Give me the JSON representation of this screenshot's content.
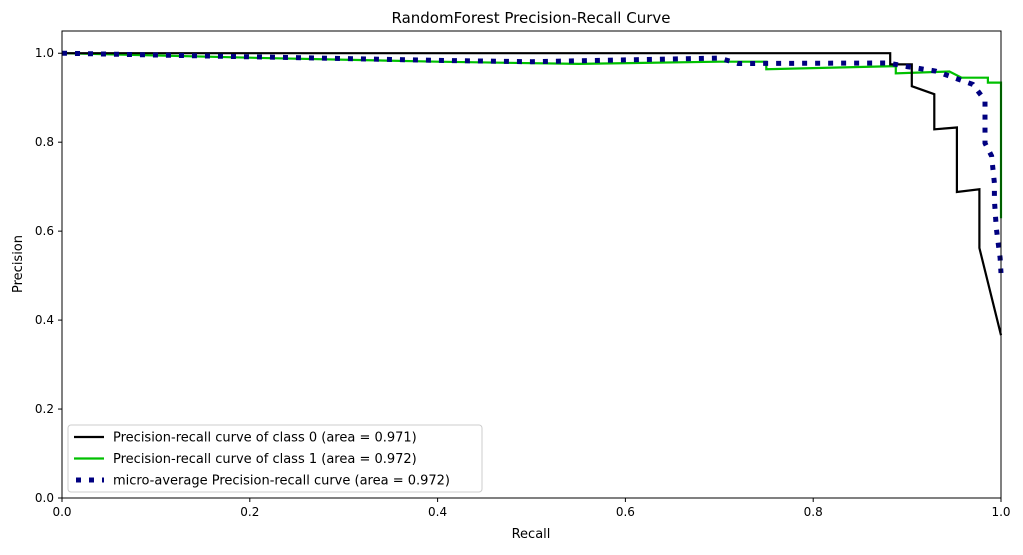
{
  "chart_data": {
    "type": "line",
    "title": "RandomForest Precision-Recall Curve",
    "xlabel": "Recall",
    "ylabel": "Precision",
    "xlim": [
      0,
      1
    ],
    "ylim": [
      0,
      1.05
    ],
    "xticks": [
      "0.0",
      "0.2",
      "0.4",
      "0.6",
      "0.8",
      "1.0"
    ],
    "yticks": [
      "0.0",
      "0.2",
      "0.4",
      "0.6",
      "0.8",
      "1.0"
    ],
    "grid": false,
    "legend_position": "lower-left",
    "series": [
      {
        "name": "Precision-recall curve of class 0 (area = 0.971)",
        "color": "#000000",
        "style": "solid",
        "points": [
          [
            0,
            1.0
          ],
          [
            0.882,
            1.0
          ],
          [
            0.882,
            0.975
          ],
          [
            0.905,
            0.975
          ],
          [
            0.905,
            0.926
          ],
          [
            0.929,
            0.908
          ],
          [
            0.929,
            0.829
          ],
          [
            0.953,
            0.833
          ],
          [
            0.953,
            0.688
          ],
          [
            0.977,
            0.694
          ],
          [
            0.977,
            0.562
          ],
          [
            1.0,
            0.366
          ]
        ]
      },
      {
        "name": "Precision-recall curve of class 1 (area = 0.972)",
        "color": "#00c000",
        "style": "solid",
        "points": [
          [
            0,
            1.0
          ],
          [
            0.2,
            0.99
          ],
          [
            0.4,
            0.981
          ],
          [
            0.55,
            0.976
          ],
          [
            0.7,
            0.981
          ],
          [
            0.75,
            0.981
          ],
          [
            0.75,
            0.964
          ],
          [
            0.888,
            0.971
          ],
          [
            0.888,
            0.955
          ],
          [
            0.945,
            0.959
          ],
          [
            0.958,
            0.945
          ],
          [
            0.986,
            0.945
          ],
          [
            0.986,
            0.934
          ],
          [
            1.0,
            0.934
          ],
          [
            1.0,
            0.629
          ]
        ]
      },
      {
        "name": "micro-average Precision-recall curve (area = 0.972)",
        "color": "#000080",
        "style": "dotted",
        "points": [
          [
            0,
            1.0
          ],
          [
            0.2,
            0.992
          ],
          [
            0.4,
            0.984
          ],
          [
            0.5,
            0.981
          ],
          [
            0.6,
            0.985
          ],
          [
            0.7,
            0.989
          ],
          [
            0.72,
            0.977
          ],
          [
            0.88,
            0.978
          ],
          [
            0.9,
            0.97
          ],
          [
            0.93,
            0.96
          ],
          [
            0.95,
            0.945
          ],
          [
            0.97,
            0.93
          ],
          [
            0.983,
            0.894
          ],
          [
            0.983,
            0.865
          ],
          [
            0.983,
            0.798
          ],
          [
            0.99,
            0.769
          ],
          [
            0.993,
            0.708
          ],
          [
            0.993,
            0.67
          ],
          [
            0.995,
            0.607
          ],
          [
            0.997,
            0.573
          ],
          [
            0.999,
            0.54
          ],
          [
            1.0,
            0.506
          ]
        ]
      }
    ]
  }
}
